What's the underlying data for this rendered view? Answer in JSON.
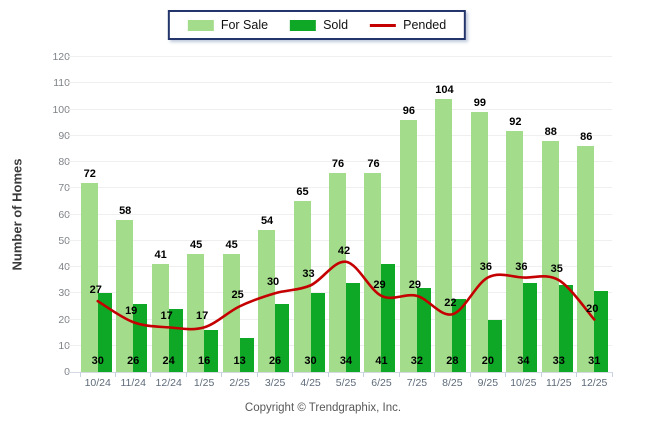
{
  "legend": {
    "items": [
      {
        "label": "For Sale",
        "color": "#A3DD8C",
        "kind": "swatch"
      },
      {
        "label": "Sold",
        "color": "#0FA826",
        "kind": "swatch"
      },
      {
        "label": "Pended",
        "color": "#C40000",
        "kind": "line"
      }
    ]
  },
  "footer": {
    "text": "Copyright © Trendgraphix, Inc."
  },
  "chart_data": {
    "type": "bar",
    "title": "",
    "xlabel": "",
    "ylabel": "Number of Homes",
    "ylim": [
      0,
      120
    ],
    "ytick_step": 10,
    "grid": true,
    "legend_position": "top",
    "categories": [
      "10/24",
      "11/24",
      "12/24",
      "1/25",
      "2/25",
      "3/25",
      "4/25",
      "5/25",
      "6/25",
      "7/25",
      "8/25",
      "9/25",
      "10/25",
      "11/25",
      "12/25"
    ],
    "series": [
      {
        "name": "For Sale",
        "type": "bar",
        "color": "#A3DD8C",
        "values": [
          72,
          58,
          41,
          45,
          45,
          54,
          65,
          76,
          76,
          96,
          104,
          99,
          92,
          88,
          86
        ]
      },
      {
        "name": "Sold",
        "type": "bar",
        "color": "#0FA826",
        "values": [
          30,
          26,
          24,
          16,
          13,
          26,
          30,
          34,
          41,
          32,
          28,
          20,
          34,
          33,
          31
        ]
      },
      {
        "name": "Pended",
        "type": "line",
        "color": "#C40000",
        "values": [
          27,
          19,
          17,
          17,
          25,
          30,
          33,
          42,
          29,
          29,
          22,
          36,
          36,
          35,
          20
        ]
      }
    ],
    "colors": {
      "gridline": "#EFEFEF",
      "axis_line": "#D3DAE3",
      "tick": "#C6D0DF"
    }
  }
}
